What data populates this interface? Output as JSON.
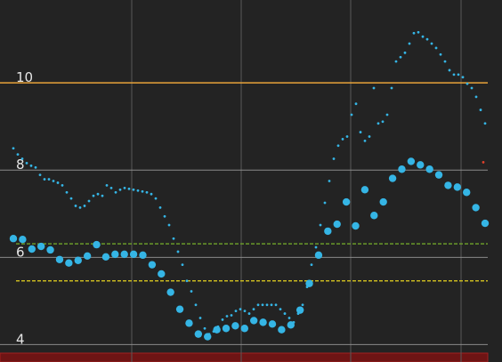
{
  "chart_data": {
    "type": "scatter",
    "ylim": [
      3.6,
      11.9
    ],
    "yticks": [
      4,
      6,
      8,
      10
    ],
    "grid": true,
    "high_line": {
      "value": 10,
      "color": "#e8a33a"
    },
    "target_lines": [
      {
        "value": 6.31,
        "color": "#6a9a2a"
      },
      {
        "value": 5.46,
        "color": "#c8b820"
      }
    ],
    "series": [
      {
        "color": "#35b5e5",
        "size": "small",
        "values": [
          8.5,
          8.36,
          8.26,
          8.16,
          8.1,
          8.06,
          7.89,
          7.79,
          7.79,
          7.75,
          7.71,
          7.65,
          7.49,
          7.35,
          7.18,
          7.14,
          7.18,
          7.29,
          7.41,
          7.45,
          7.41,
          7.65,
          7.59,
          7.49,
          7.55,
          7.59,
          7.57,
          7.55,
          7.53,
          7.51,
          7.49,
          7.45,
          7.35,
          7.14,
          6.94,
          6.74,
          6.43,
          6.13,
          5.83,
          5.46,
          5.22,
          4.91,
          4.61,
          4.37,
          4.24,
          4.3,
          4.41,
          4.57,
          4.65,
          4.67,
          4.77,
          4.81,
          4.77,
          4.71,
          4.81,
          4.91,
          4.91,
          4.91,
          4.91,
          4.91,
          4.81,
          4.71,
          4.61,
          4.51,
          4.71,
          4.91,
          5.32,
          5.83,
          6.23,
          6.74,
          7.25,
          7.75,
          8.26,
          8.56,
          8.71,
          8.77,
          9.27,
          9.52,
          8.87,
          8.67,
          8.77,
          9.88,
          9.07,
          9.11,
          9.27,
          9.88,
          10.49,
          10.59,
          10.69,
          10.9,
          11.14,
          11.16,
          11.06,
          11.0,
          10.9,
          10.8,
          10.65,
          10.49,
          10.29,
          10.19,
          10.19,
          10.13,
          9.98,
          9.88,
          9.68,
          9.38,
          9.07
        ]
      },
      {
        "color": "#35b5e5",
        "size": "large",
        "values": [
          6.43,
          6.41,
          6.19,
          6.25,
          6.17,
          5.95,
          5.87,
          5.93,
          6.03,
          6.29,
          6.01,
          6.07,
          6.07,
          6.07,
          6.05,
          5.83,
          5.62,
          5.2,
          4.81,
          4.49,
          4.24,
          4.18,
          4.34,
          4.37,
          4.43,
          4.37,
          4.55,
          4.51,
          4.47,
          4.34,
          4.45,
          4.79,
          5.4,
          6.05,
          6.6,
          6.76,
          7.27,
          6.72,
          7.55,
          6.96,
          7.27,
          7.81,
          8.02,
          8.2,
          8.12,
          8.02,
          7.89,
          7.65,
          7.61,
          7.49,
          7.14,
          6.78
        ]
      },
      {
        "color": "#e0402a",
        "size": "small",
        "values": [
          8.18
        ]
      }
    ]
  }
}
